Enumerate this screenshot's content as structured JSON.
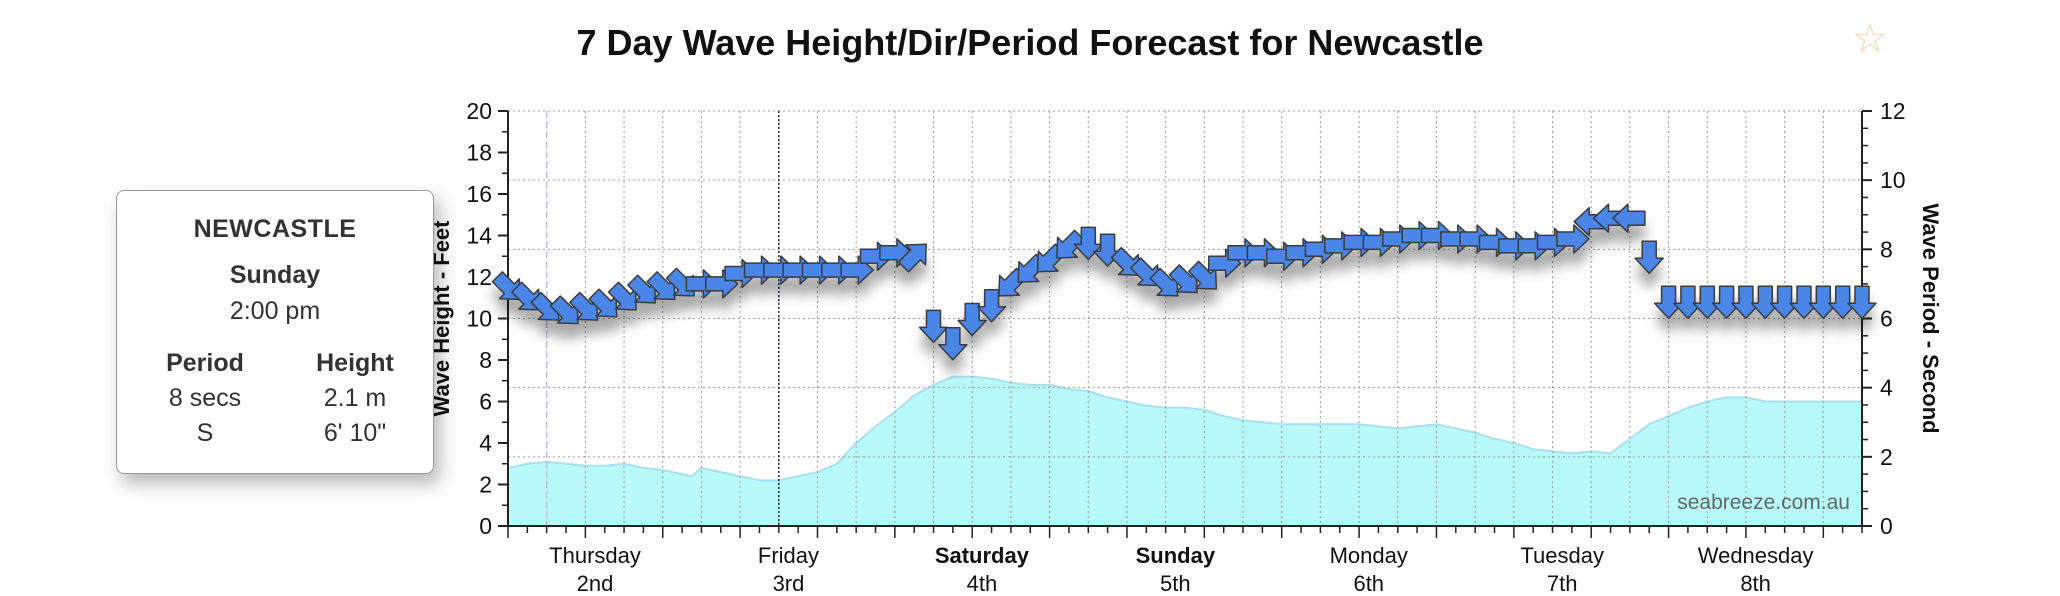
{
  "page": {
    "title": "7 Day Wave Height/Dir/Period Forecast for Newcastle",
    "favourite_icon": "star-icon"
  },
  "tooltip": {
    "location": "NEWCASTLE",
    "day": "Sunday",
    "time": "2:00 pm",
    "period_header": "Period",
    "height_header": "Height",
    "period_value": "8 secs",
    "direction": "S",
    "height_m": "2.1 m",
    "height_ft": "6' 10\""
  },
  "chart_data": {
    "type": "area",
    "ylabel_left": "Wave Height - Feet",
    "ylabel_right": "Wave Period - Second",
    "ylim_left": [
      0,
      20
    ],
    "ylim_right": [
      0,
      12
    ],
    "y_ticks_left": [
      "0",
      "2",
      "4",
      "6",
      "8",
      "10",
      "12",
      "14",
      "16",
      "18",
      "20"
    ],
    "y_ticks_right": [
      "0",
      "2",
      "4",
      "6",
      "8",
      "10",
      "12"
    ],
    "x_days": [
      {
        "name": "Thursday",
        "date": "2nd",
        "bold": false
      },
      {
        "name": "Friday",
        "date": "3rd",
        "bold": false
      },
      {
        "name": "Saturday",
        "date": "4th",
        "bold": true
      },
      {
        "name": "Sunday",
        "date": "5th",
        "bold": true
      },
      {
        "name": "Monday",
        "date": "6th",
        "bold": false
      },
      {
        "name": "Tuesday",
        "date": "7th",
        "bold": false
      },
      {
        "name": "Wednesday",
        "date": "8th",
        "bold": false
      }
    ],
    "watermark": "seabreeze.com.au",
    "grid": true,
    "colors": {
      "wave_fill": "#b8fafa",
      "wave_line": "#a9dff0",
      "arrow_fill": "#4a86e8",
      "arrow_stroke": "#3a3a3a"
    },
    "wave_height_ft": {
      "x_hours": [
        0,
        6,
        12,
        18,
        24,
        30,
        36,
        42,
        48,
        54,
        57,
        60,
        66,
        72,
        78,
        84,
        90,
        96,
        102,
        108,
        114,
        120,
        126,
        132,
        138,
        144,
        150,
        156,
        162,
        168,
        174,
        180,
        186,
        192,
        198,
        204,
        210,
        216,
        222,
        228,
        234,
        240,
        246,
        252,
        258,
        264,
        270,
        276,
        282,
        288,
        294,
        300,
        306,
        312,
        318,
        324,
        330,
        336,
        342,
        348,
        354,
        360,
        366,
        372,
        378,
        384,
        390,
        396,
        402,
        408,
        414,
        420
      ],
      "values": [
        2.8,
        3.0,
        3.1,
        3.0,
        2.9,
        2.9,
        3.0,
        2.8,
        2.7,
        2.5,
        2.4,
        2.8,
        2.6,
        2.4,
        2.2,
        2.2,
        2.4,
        2.6,
        3.0,
        4.0,
        4.8,
        5.5,
        6.3,
        6.8,
        7.2,
        7.2,
        7.1,
        6.9,
        6.8,
        6.8,
        6.6,
        6.5,
        6.2,
        6.0,
        5.8,
        5.7,
        5.7,
        5.6,
        5.3,
        5.1,
        5.0,
        4.9,
        4.9,
        4.9,
        4.9,
        4.9,
        4.8,
        4.7,
        4.8,
        4.9,
        4.7,
        4.5,
        4.2,
        4.0,
        3.7,
        3.6,
        3.5,
        3.6,
        3.5,
        4.2,
        4.9,
        5.3,
        5.7,
        6.0,
        6.2,
        6.2,
        6.0,
        6.0,
        6.0,
        6.0,
        6.0,
        6.0
      ]
    },
    "wave_period_s": {
      "x_hours": [
        0,
        6,
        12,
        18,
        24,
        30,
        36,
        42,
        48,
        54,
        60,
        66,
        72,
        78,
        84,
        90,
        96,
        102,
        108,
        114,
        120,
        126,
        132,
        138,
        144,
        150,
        156,
        162,
        168,
        174,
        180,
        186,
        192,
        198,
        204,
        210,
        216,
        222,
        228,
        234,
        240,
        246,
        252,
        258,
        264,
        270,
        276,
        282,
        288,
        294,
        300,
        306,
        312,
        318,
        324,
        330,
        336,
        342,
        348,
        354,
        360,
        366,
        372,
        378,
        384,
        390,
        396,
        402,
        408,
        414,
        420
      ],
      "values": [
        6.9,
        6.6,
        6.3,
        6.2,
        6.3,
        6.4,
        6.6,
        6.8,
        6.9,
        7.0,
        7.0,
        7.0,
        7.3,
        7.4,
        7.4,
        7.4,
        7.4,
        7.4,
        7.4,
        7.8,
        7.9,
        7.8,
        5.8,
        5.3,
        6.0,
        6.4,
        7.0,
        7.4,
        7.7,
        8.1,
        8.2,
        8.0,
        7.6,
        7.3,
        7.0,
        7.1,
        7.2,
        7.6,
        7.9,
        7.9,
        7.8,
        7.9,
        8.0,
        8.1,
        8.2,
        8.2,
        8.3,
        8.4,
        8.4,
        8.3,
        8.3,
        8.2,
        8.1,
        8.1,
        8.2,
        8.3,
        8.8,
        8.9,
        8.9,
        7.8,
        6.5,
        6.5,
        6.5,
        6.5,
        6.5,
        6.5,
        6.5,
        6.5,
        6.5,
        6.5,
        6.5
      ],
      "direction": [
        "SE",
        "SE",
        "SE",
        "SE",
        "SE",
        "SE",
        "SE",
        "SE",
        "SE",
        "SE",
        "E",
        "E",
        "E",
        "E",
        "E",
        "E",
        "E",
        "E",
        "E",
        "E",
        "E",
        "NE",
        "S",
        "S",
        "S",
        "S",
        "SW",
        "SW",
        "SW",
        "SW",
        "S",
        "S",
        "SE",
        "SE",
        "SE",
        "SE",
        "SE",
        "E",
        "E",
        "E",
        "E",
        "E",
        "E",
        "E",
        "E",
        "E",
        "E",
        "E",
        "E",
        "E",
        "E",
        "E",
        "E",
        "E",
        "E",
        "E",
        "W",
        "W",
        "W",
        "S",
        "S",
        "S",
        "S",
        "S",
        "S",
        "S",
        "S",
        "S",
        "S",
        "S",
        "S"
      ]
    }
  }
}
